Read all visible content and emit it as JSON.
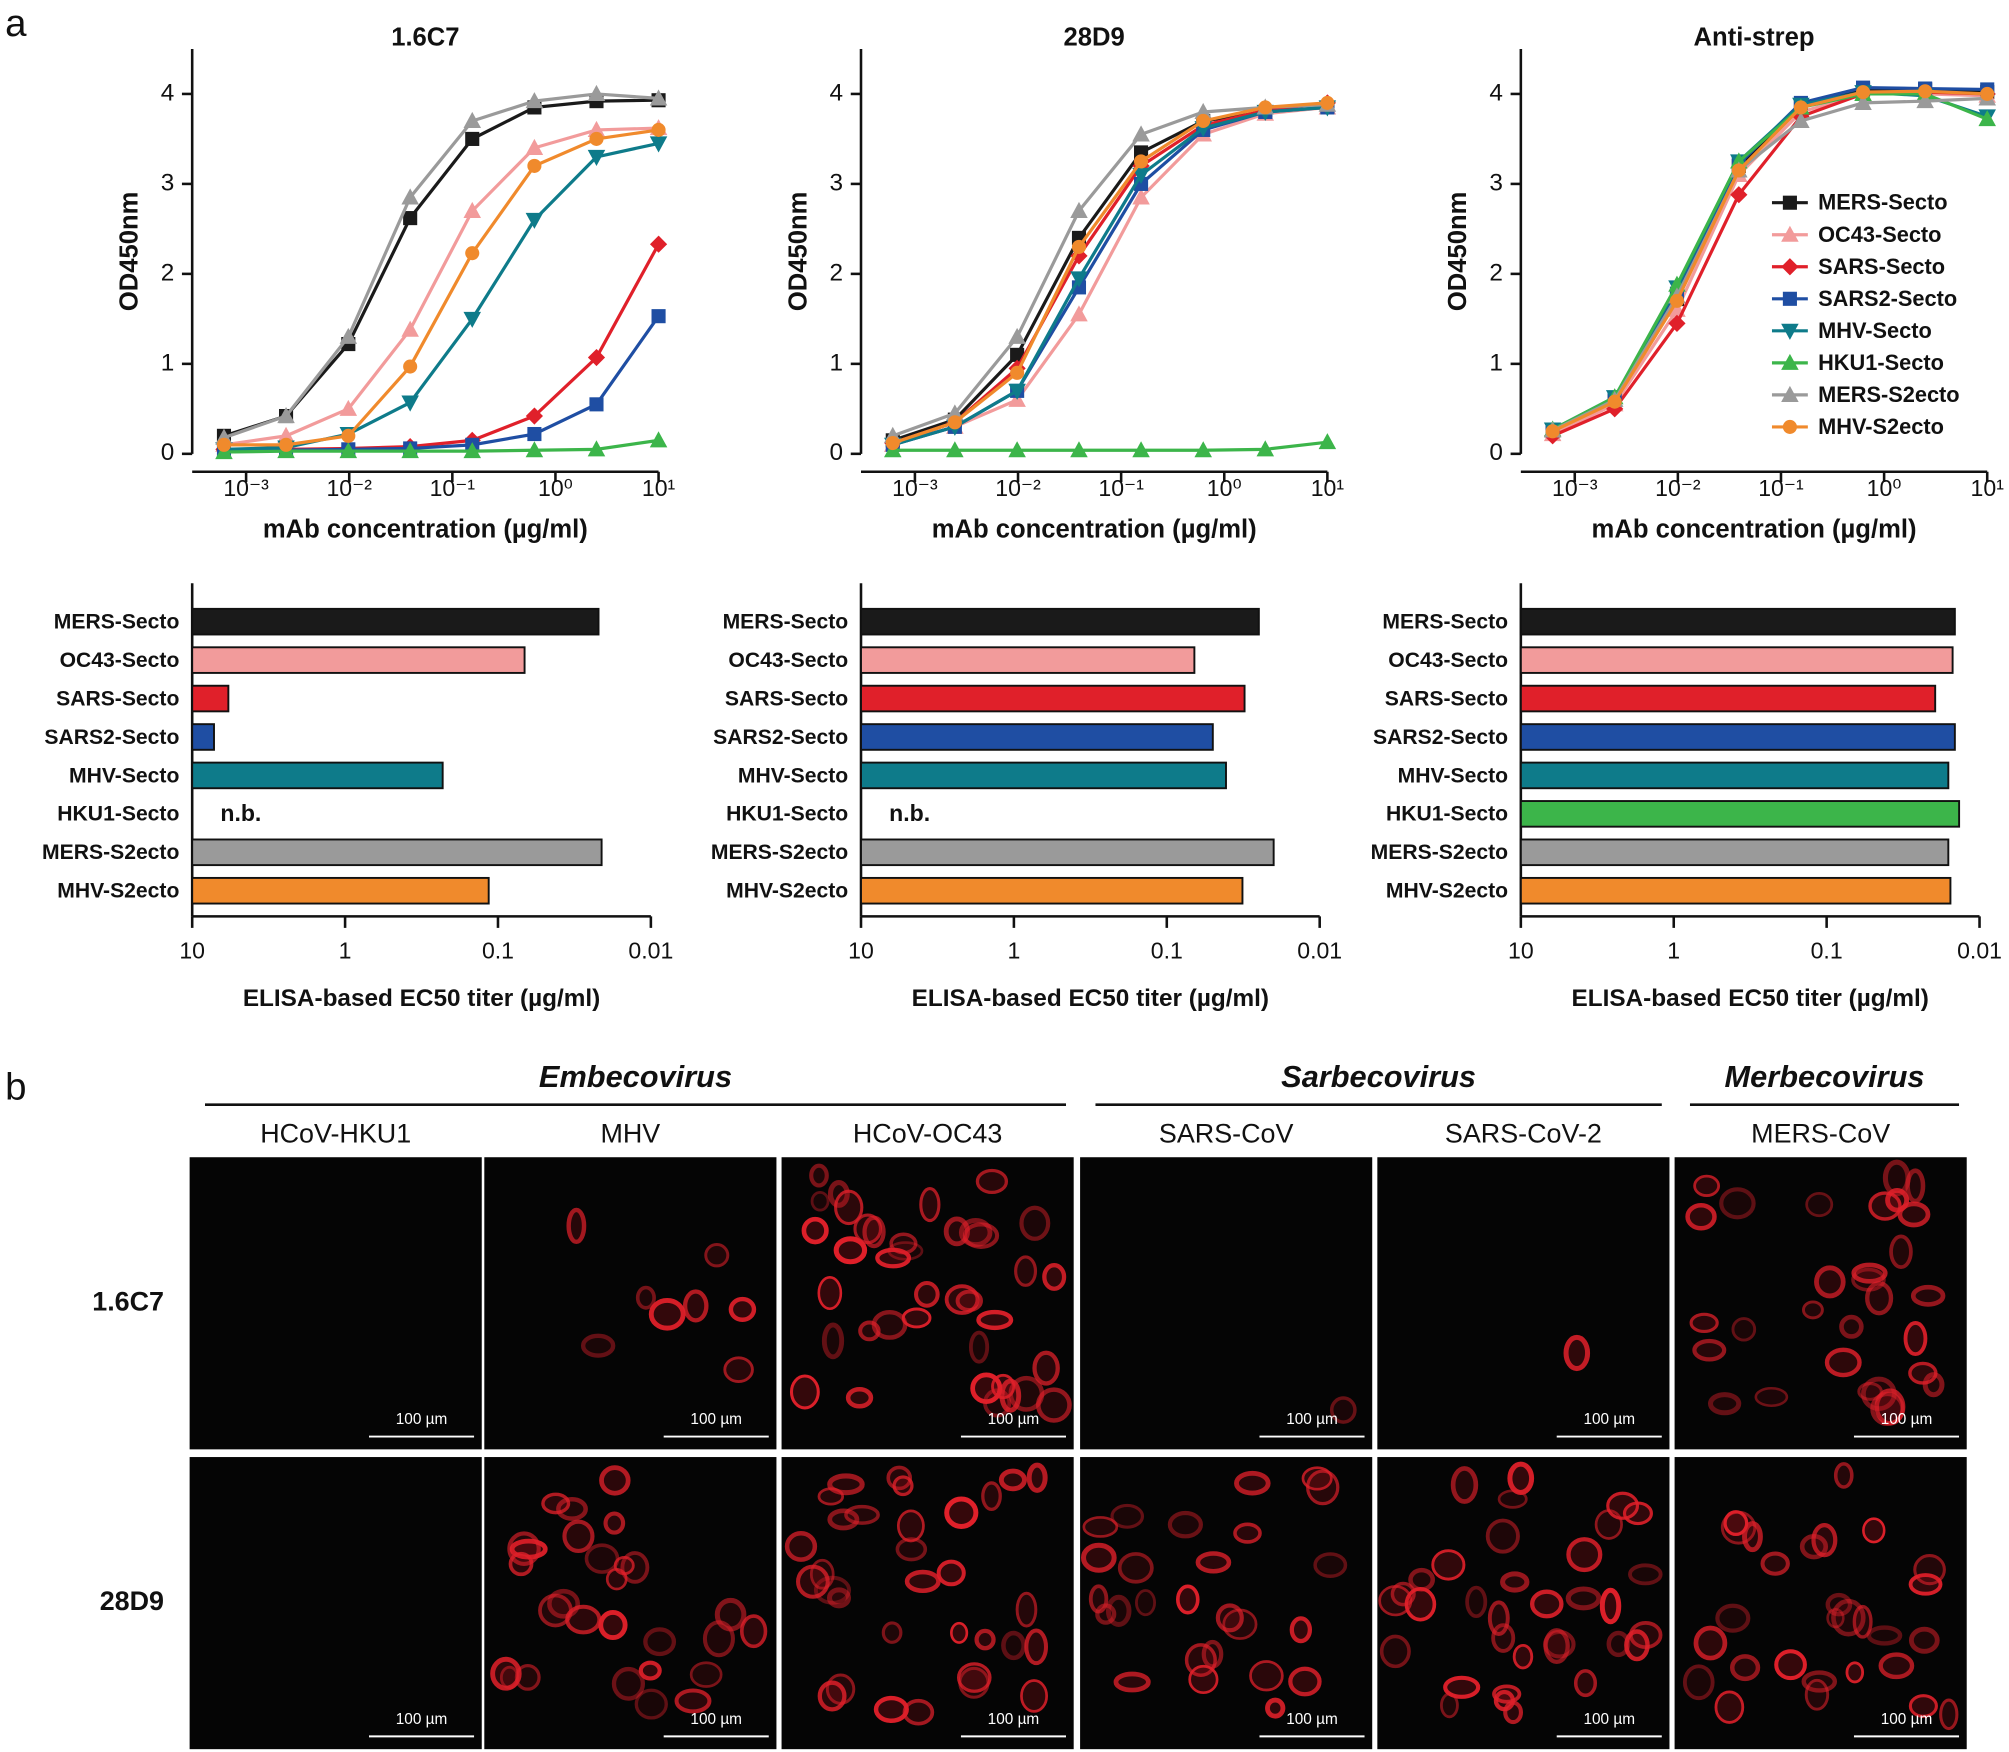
{
  "panel_labels": [
    "a",
    "b"
  ],
  "chart_data": [
    {
      "type": "line",
      "title": "1.6C7",
      "xlabel": "mAb concentration (µg/ml)",
      "ylabel": "OD450nm",
      "xscale": "log",
      "x": [
        0.00061,
        0.00244,
        0.0098,
        0.039,
        0.156,
        0.625,
        2.5,
        10
      ],
      "xlim": [
        0.0003,
        10
      ],
      "xticks": [
        {
          "value": 0.001,
          "label": "10⁻³"
        },
        {
          "value": 0.01,
          "label": "10⁻²"
        },
        {
          "value": 0.1,
          "label": "10⁻¹"
        },
        {
          "value": 1,
          "label": "10⁰"
        },
        {
          "value": 10,
          "label": "10¹"
        }
      ],
      "ylim": [
        0,
        4.5
      ],
      "yticks": [
        0,
        1,
        2,
        3,
        4
      ],
      "series": [
        {
          "name": "MERS-Secto",
          "color": "#1a1a1a",
          "marker": "square",
          "values": [
            0.2,
            0.42,
            1.22,
            2.62,
            3.5,
            3.85,
            3.92,
            3.93
          ]
        },
        {
          "name": "OC43-Secto",
          "color": "#f29b9b",
          "marker": "triangle",
          "values": [
            0.1,
            0.2,
            0.5,
            1.38,
            2.7,
            3.4,
            3.6,
            3.62
          ]
        },
        {
          "name": "SARS-Secto",
          "color": "#e0202a",
          "marker": "diamond",
          "values": [
            0.05,
            0.05,
            0.06,
            0.08,
            0.15,
            0.42,
            1.07,
            2.33
          ]
        },
        {
          "name": "SARS2-Secto",
          "color": "#1f4ea3",
          "marker": "square",
          "values": [
            0.04,
            0.04,
            0.05,
            0.06,
            0.1,
            0.22,
            0.55,
            1.53
          ]
        },
        {
          "name": "MHV-Secto",
          "color": "#0e7b8a",
          "marker": "down",
          "values": [
            0.05,
            0.07,
            0.22,
            0.57,
            1.5,
            2.6,
            3.3,
            3.45
          ]
        },
        {
          "name": "HKU1-Secto",
          "color": "#3cb54a",
          "marker": "triangle",
          "values": [
            0.02,
            0.03,
            0.03,
            0.03,
            0.03,
            0.04,
            0.05,
            0.15
          ]
        },
        {
          "name": "MERS-S2ecto",
          "color": "#9a9a9a",
          "marker": "triangle",
          "values": [
            0.18,
            0.42,
            1.3,
            2.85,
            3.7,
            3.92,
            4.0,
            3.95
          ]
        },
        {
          "name": "MHV-S2ecto",
          "color": "#f08a2c",
          "marker": "circle",
          "values": [
            0.1,
            0.1,
            0.2,
            0.97,
            2.23,
            3.2,
            3.5,
            3.6
          ]
        }
      ]
    },
    {
      "type": "line",
      "title": "28D9",
      "xlabel": "mAb concentration (µg/ml)",
      "ylabel": "OD450nm",
      "xscale": "log",
      "x": [
        0.00061,
        0.00244,
        0.0098,
        0.039,
        0.156,
        0.625,
        2.5,
        10
      ],
      "xlim": [
        0.0003,
        10
      ],
      "xticks": [
        {
          "value": 0.001,
          "label": "10⁻³"
        },
        {
          "value": 0.01,
          "label": "10⁻²"
        },
        {
          "value": 0.1,
          "label": "10⁻¹"
        },
        {
          "value": 1,
          "label": "10⁰"
        },
        {
          "value": 10,
          "label": "10¹"
        }
      ],
      "ylim": [
        0,
        4.5
      ],
      "yticks": [
        0,
        1,
        2,
        3,
        4
      ],
      "series": [
        {
          "name": "MERS-Secto",
          "color": "#1a1a1a",
          "marker": "square",
          "values": [
            0.15,
            0.38,
            1.1,
            2.4,
            3.35,
            3.7,
            3.8,
            3.85
          ]
        },
        {
          "name": "OC43-Secto",
          "color": "#f29b9b",
          "marker": "triangle",
          "values": [
            0.1,
            0.3,
            0.6,
            1.55,
            2.85,
            3.55,
            3.78,
            3.85
          ]
        },
        {
          "name": "SARS-Secto",
          "color": "#e0202a",
          "marker": "diamond",
          "values": [
            0.12,
            0.35,
            0.95,
            2.2,
            3.2,
            3.65,
            3.82,
            3.9
          ]
        },
        {
          "name": "SARS2-Secto",
          "color": "#1f4ea3",
          "marker": "square",
          "values": [
            0.1,
            0.3,
            0.7,
            1.85,
            3.0,
            3.6,
            3.8,
            3.85
          ]
        },
        {
          "name": "MHV-Secto",
          "color": "#0e7b8a",
          "marker": "down",
          "values": [
            0.1,
            0.3,
            0.7,
            1.95,
            3.1,
            3.62,
            3.8,
            3.85
          ]
        },
        {
          "name": "HKU1-Secto",
          "color": "#3cb54a",
          "marker": "triangle",
          "values": [
            0.04,
            0.04,
            0.04,
            0.04,
            0.04,
            0.04,
            0.05,
            0.13
          ]
        },
        {
          "name": "MERS-S2ecto",
          "color": "#9a9a9a",
          "marker": "triangle",
          "values": [
            0.2,
            0.45,
            1.3,
            2.7,
            3.55,
            3.8,
            3.85,
            3.88
          ]
        },
        {
          "name": "MHV-S2ecto",
          "color": "#f08a2c",
          "marker": "circle",
          "values": [
            0.12,
            0.35,
            0.9,
            2.3,
            3.25,
            3.7,
            3.85,
            3.9
          ]
        }
      ]
    },
    {
      "type": "line",
      "title": "Anti-strep",
      "xlabel": "mAb concentration (µg/ml)",
      "ylabel": "OD450nm",
      "xscale": "log",
      "legend": "center right",
      "x": [
        0.00061,
        0.00244,
        0.0098,
        0.039,
        0.156,
        0.625,
        2.5,
        10
      ],
      "xlim": [
        0.0003,
        10
      ],
      "xticks": [
        {
          "value": 0.001,
          "label": "10⁻³"
        },
        {
          "value": 0.01,
          "label": "10⁻²"
        },
        {
          "value": 0.1,
          "label": "10⁻¹"
        },
        {
          "value": 1,
          "label": "10⁰"
        },
        {
          "value": 10,
          "label": "10¹"
        }
      ],
      "ylim": [
        0,
        4.5
      ],
      "yticks": [
        0,
        1,
        2,
        3,
        4
      ],
      "series": [
        {
          "name": "MERS-Secto",
          "color": "#1a1a1a",
          "marker": "square",
          "values": [
            0.25,
            0.6,
            1.72,
            3.2,
            3.88,
            4.05,
            4.05,
            4.02
          ]
        },
        {
          "name": "OC43-Secto",
          "color": "#f29b9b",
          "marker": "triangle",
          "values": [
            0.22,
            0.55,
            1.6,
            3.1,
            3.8,
            4.0,
            4.0,
            3.98
          ]
        },
        {
          "name": "SARS-Secto",
          "color": "#e0202a",
          "marker": "diamond",
          "values": [
            0.2,
            0.5,
            1.45,
            2.88,
            3.75,
            4.0,
            4.02,
            4.0
          ]
        },
        {
          "name": "SARS2-Secto",
          "color": "#1f4ea3",
          "marker": "square",
          "values": [
            0.26,
            0.62,
            1.78,
            3.22,
            3.9,
            4.07,
            4.06,
            4.05
          ]
        },
        {
          "name": "MHV-Secto",
          "color": "#0e7b8a",
          "marker": "down",
          "values": [
            0.27,
            0.63,
            1.85,
            3.25,
            3.88,
            4.02,
            3.98,
            3.75
          ]
        },
        {
          "name": "HKU1-Secto",
          "color": "#3cb54a",
          "marker": "triangle",
          "values": [
            0.27,
            0.63,
            1.88,
            3.25,
            3.85,
            4.0,
            4.0,
            3.72
          ]
        },
        {
          "name": "MERS-S2ecto",
          "color": "#9a9a9a",
          "marker": "triangle",
          "values": [
            0.26,
            0.6,
            1.75,
            3.15,
            3.7,
            3.9,
            3.92,
            3.95
          ]
        },
        {
          "name": "MHV-S2ecto",
          "color": "#f08a2c",
          "marker": "circle",
          "values": [
            0.25,
            0.58,
            1.7,
            3.15,
            3.85,
            4.02,
            4.03,
            4.0
          ]
        }
      ]
    },
    {
      "type": "bar",
      "orientation": "horizontal",
      "xlabel": "ELISA-based EC50 titer (µg/ml)",
      "xscale": "log",
      "categories": [
        "MERS-Secto",
        "OC43-Secto",
        "SARS-Secto",
        "SARS2-Secto",
        "MHV-Secto",
        "HKU1-Secto",
        "MERS-S2ecto",
        "MHV-S2ecto"
      ],
      "values": [
        0.022,
        0.067,
        5.8,
        7.2,
        0.23,
        null,
        0.021,
        0.115
      ],
      "value_labels": [
        null,
        null,
        null,
        null,
        null,
        "n.b.",
        null,
        null
      ],
      "colors": [
        "#1a1a1a",
        "#f29b9b",
        "#e0202a",
        "#1f4ea3",
        "#0e7b8a",
        "#3cb54a",
        "#9a9a9a",
        "#f08a2c"
      ],
      "xlim": [
        10,
        0.01
      ],
      "xticks": [
        10,
        1,
        0.1,
        0.01
      ]
    },
    {
      "type": "bar",
      "orientation": "horizontal",
      "xlabel": "ELISA-based EC50 titer (µg/ml)",
      "xscale": "log",
      "categories": [
        "MERS-Secto",
        "OC43-Secto",
        "SARS-Secto",
        "SARS2-Secto",
        "MHV-Secto",
        "HKU1-Secto",
        "MERS-S2ecto",
        "MHV-S2ecto"
      ],
      "values": [
        0.025,
        0.066,
        0.031,
        0.05,
        0.041,
        null,
        0.02,
        0.032
      ],
      "value_labels": [
        null,
        null,
        null,
        null,
        null,
        "n.b.",
        null,
        null
      ],
      "colors": [
        "#1a1a1a",
        "#f29b9b",
        "#e0202a",
        "#1f4ea3",
        "#0e7b8a",
        "#3cb54a",
        "#9a9a9a",
        "#f08a2c"
      ],
      "xlim": [
        10,
        0.01
      ],
      "xticks": [
        10,
        1,
        0.1,
        0.01
      ]
    },
    {
      "type": "bar",
      "orientation": "horizontal",
      "xlabel": "ELISA-based EC50 titer (µg/ml)",
      "xscale": "log",
      "categories": [
        "MERS-Secto",
        "OC43-Secto",
        "SARS-Secto",
        "SARS2-Secto",
        "MHV-Secto",
        "HKU1-Secto",
        "MERS-S2ecto",
        "MHV-S2ecto"
      ],
      "values": [
        0.0145,
        0.015,
        0.0195,
        0.0145,
        0.016,
        0.0136,
        0.016,
        0.0155
      ],
      "colors": [
        "#1a1a1a",
        "#f29b9b",
        "#e0202a",
        "#1f4ea3",
        "#0e7b8a",
        "#3cb54a",
        "#9a9a9a",
        "#f08a2c"
      ],
      "xlim": [
        10,
        0.01
      ],
      "xticks": [
        10,
        1,
        0.1,
        0.01
      ]
    }
  ],
  "panel_b": {
    "groups": [
      {
        "name": "Embecovirus",
        "columns": [
          0,
          2
        ]
      },
      {
        "name": "Sarbecovirus",
        "columns": [
          3,
          4
        ]
      },
      {
        "name": "Merbecovirus",
        "columns": [
          5,
          5
        ]
      }
    ],
    "columns": [
      "HCoV-HKU1",
      "MHV",
      "HCoV-OC43",
      "SARS-CoV",
      "SARS-CoV-2",
      "MERS-CoV"
    ],
    "rows": [
      "1.6C7",
      "28D9"
    ],
    "scale_bar": "100 µm"
  }
}
